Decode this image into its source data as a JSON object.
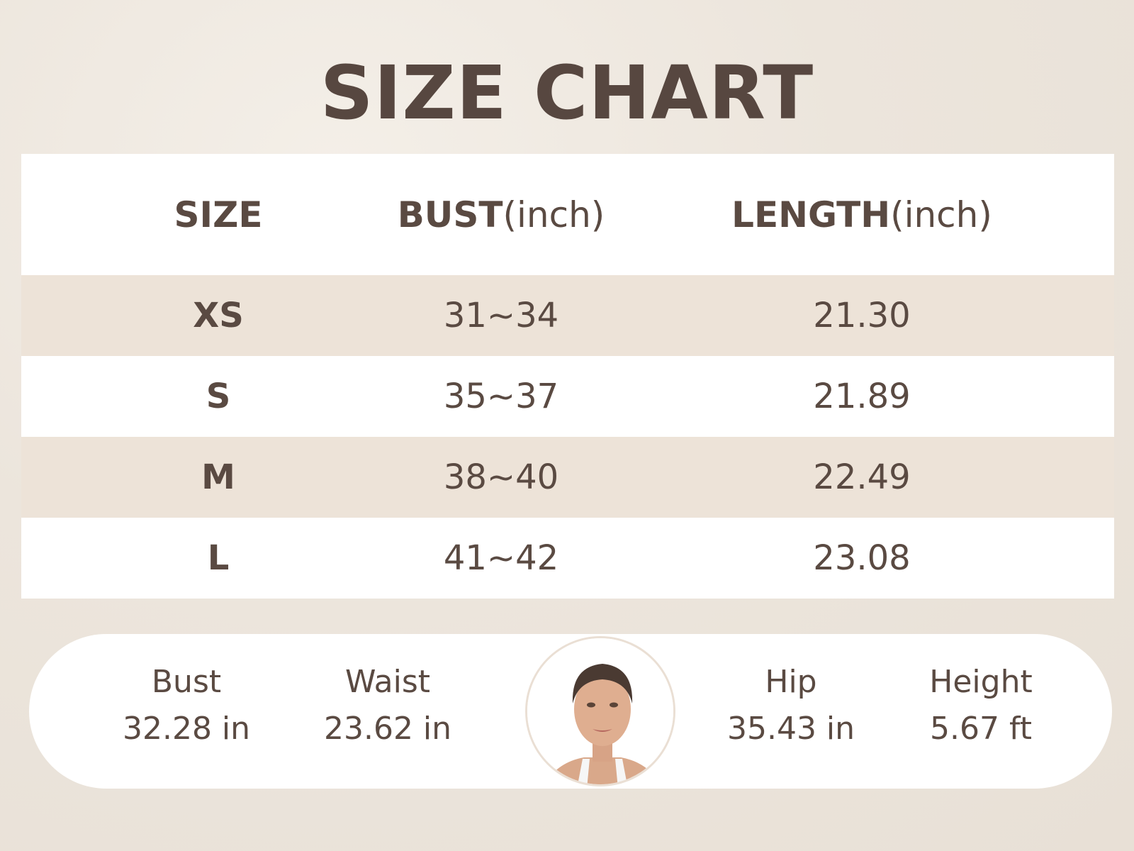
{
  "title": "SIZE CHART",
  "table": {
    "headers": [
      {
        "main": "SIZE",
        "unit": ""
      },
      {
        "main": "BUST",
        "unit": "(inch)"
      },
      {
        "main": "LENGTH",
        "unit": "(inch)"
      }
    ],
    "rows": [
      {
        "size": "XS",
        "bust": "31~34",
        "length": "21.30"
      },
      {
        "size": "S",
        "bust": "35~37",
        "length": "21.89"
      },
      {
        "size": "M",
        "bust": "38~40",
        "length": "22.49"
      },
      {
        "size": "L",
        "bust": "41~42",
        "length": "23.08"
      }
    ]
  },
  "model": {
    "measurements": [
      {
        "label": "Bust",
        "value": "32.28 in"
      },
      {
        "label": "Waist",
        "value": "23.62 in"
      },
      {
        "label": "Hip",
        "value": "35.43 in"
      },
      {
        "label": "Height",
        "value": "5.67 ft"
      }
    ],
    "photo": "model-portrait"
  },
  "colors": {
    "text": "#574740",
    "alt_row": "#ede3d8",
    "background": "#ece5dc"
  }
}
